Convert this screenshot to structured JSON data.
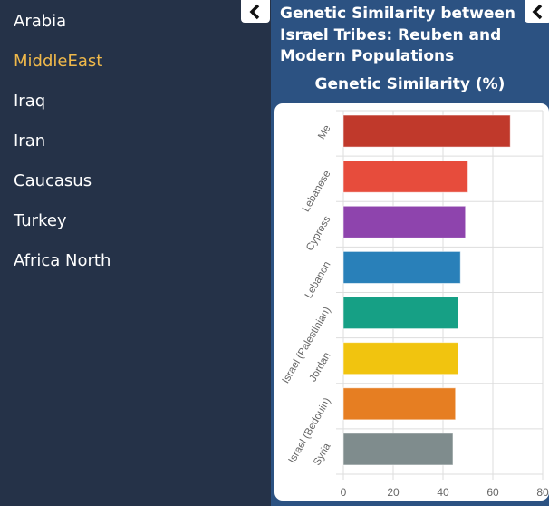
{
  "sidebar": {
    "items": [
      {
        "label": "Arabia",
        "active": false
      },
      {
        "label": "MiddleEast",
        "active": true
      },
      {
        "label": "Iraq",
        "active": false
      },
      {
        "label": "Iran",
        "active": false
      },
      {
        "label": "Caucasus",
        "active": false
      },
      {
        "label": "Turkey",
        "active": false
      },
      {
        "label": "Africa North",
        "active": false
      }
    ],
    "collapse_icon": "chevron-left-icon"
  },
  "panel": {
    "title": "Genetic Similarity between Israel Tribes: Reuben and Modern Populations",
    "collapse_icon": "chevron-left-icon"
  },
  "colors": {
    "sidebar_bg": "#253248",
    "panel_bg": "#2c5282",
    "active_item": "#f0b94a"
  },
  "chart_data": {
    "type": "bar",
    "orientation": "horizontal",
    "title": "Genetic Similarity (%)",
    "xlabel": "",
    "ylabel": "",
    "categories": [
      "Me",
      "Lebanese",
      "Cypress",
      "Lebanon",
      "Israel (Palestinian)",
      "Jordan",
      "Israel (Bedouin)",
      "Syria"
    ],
    "values": [
      67,
      50,
      49,
      47,
      46,
      46,
      45,
      44
    ],
    "bar_colors": [
      "#c0392b",
      "#e74c3c",
      "#8e44ad",
      "#2980b9",
      "#16a085",
      "#f1c40f",
      "#e67e22",
      "#7f8c8d"
    ],
    "xlim": [
      0,
      80
    ],
    "xticks": [
      0,
      20,
      40,
      60,
      80
    ],
    "grid": true,
    "legend": "none"
  }
}
